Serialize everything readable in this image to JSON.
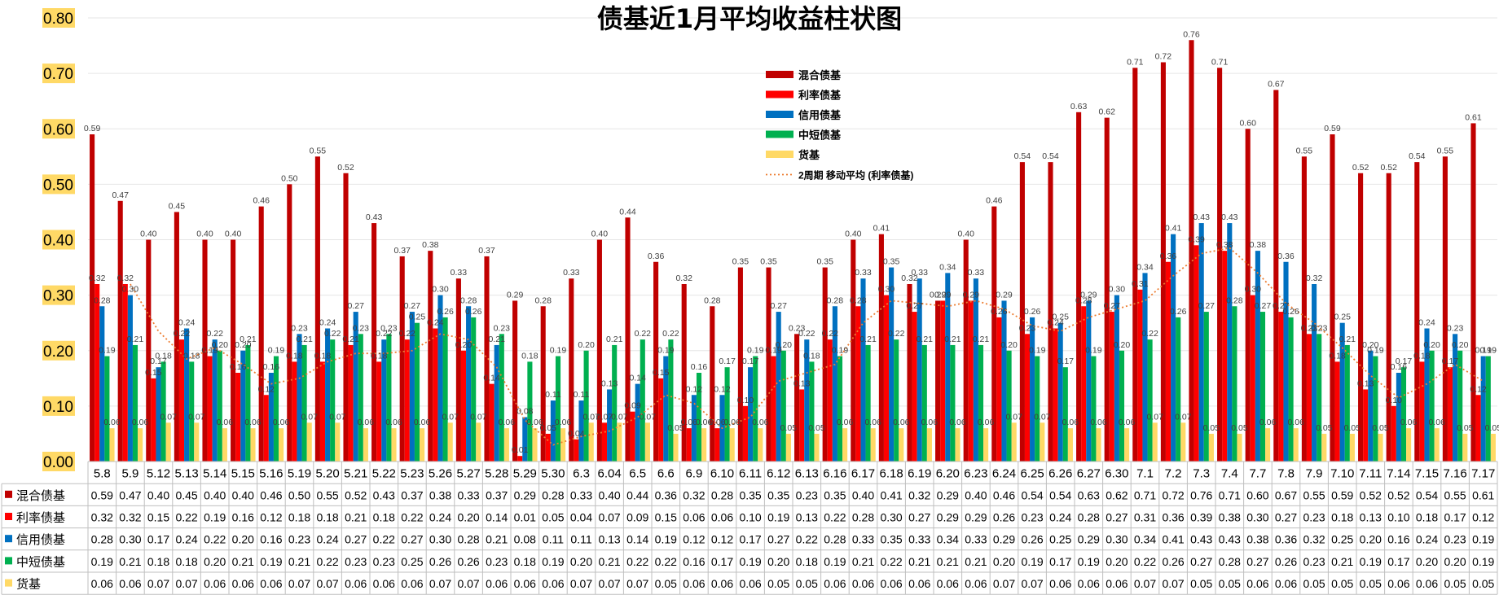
{
  "chart_data": {
    "type": "bar",
    "title": "债基近1月平均收益柱状图",
    "ylim": [
      0,
      0.8
    ],
    "yticks": [
      "0.00",
      "0.10",
      "0.20",
      "0.30",
      "0.40",
      "0.50",
      "0.60",
      "0.70",
      "0.80"
    ],
    "grid": true,
    "legend_position": "top-center",
    "categories": [
      "5.8",
      "5.9",
      "5.12",
      "5.13",
      "5.14",
      "5.15",
      "5.16",
      "5.19",
      "5.20",
      "5.21",
      "5.22",
      "5.23",
      "5.26",
      "5.27",
      "5.28",
      "5.29",
      "5.30",
      "6.3",
      "6.04",
      "6.5",
      "6.6",
      "6.9",
      "6.10",
      "6.11",
      "6.12",
      "6.13",
      "6.16",
      "6.17",
      "6.18",
      "6.19",
      "6.20",
      "6.23",
      "6.24",
      "6.25",
      "6.26",
      "6.27",
      "6.30",
      "7.1",
      "7.2",
      "7.3",
      "7.4",
      "7.7",
      "7.8",
      "7.9",
      "7.10",
      "7.11",
      "7.14",
      "7.15",
      "7.16",
      "7.17"
    ],
    "series": [
      {
        "name": "混合债基",
        "color": "#c00000",
        "values": [
          0.59,
          0.47,
          0.4,
          0.45,
          0.4,
          0.4,
          0.46,
          0.5,
          0.55,
          0.52,
          0.43,
          0.37,
          0.38,
          0.33,
          0.37,
          0.29,
          0.28,
          0.33,
          0.4,
          0.44,
          0.36,
          0.32,
          0.28,
          0.35,
          0.35,
          0.23,
          0.35,
          0.4,
          0.41,
          0.32,
          0.29,
          0.4,
          0.46,
          0.54,
          0.54,
          0.63,
          0.62,
          0.71,
          0.72,
          0.76,
          0.71,
          0.6,
          0.67,
          0.55,
          0.59,
          0.52,
          0.52,
          0.54,
          0.55,
          0.61
        ]
      },
      {
        "name": "利率债基",
        "color": "#ff0000",
        "values": [
          0.32,
          0.32,
          0.15,
          0.22,
          0.19,
          0.16,
          0.12,
          0.18,
          0.18,
          0.21,
          0.18,
          0.22,
          0.24,
          0.2,
          0.14,
          0.01,
          0.05,
          0.04,
          0.07,
          0.09,
          0.15,
          0.06,
          0.06,
          0.1,
          0.19,
          0.13,
          0.22,
          0.28,
          0.3,
          0.27,
          0.29,
          0.29,
          0.26,
          0.23,
          0.24,
          0.28,
          0.27,
          0.31,
          0.36,
          0.39,
          0.38,
          0.3,
          0.27,
          0.23,
          0.18,
          0.13,
          0.1,
          0.18,
          0.17,
          0.12
        ]
      },
      {
        "name": "信用债基",
        "color": "#0070c0",
        "values": [
          0.28,
          0.3,
          0.17,
          0.24,
          0.22,
          0.2,
          0.16,
          0.23,
          0.24,
          0.27,
          0.22,
          0.27,
          0.3,
          0.28,
          0.21,
          0.08,
          0.11,
          0.11,
          0.13,
          0.14,
          0.19,
          0.12,
          0.12,
          0.17,
          0.27,
          0.22,
          0.28,
          0.33,
          0.35,
          0.33,
          0.34,
          0.33,
          0.29,
          0.26,
          0.25,
          0.29,
          0.3,
          0.34,
          0.41,
          0.43,
          0.43,
          0.38,
          0.36,
          0.32,
          0.25,
          0.2,
          0.16,
          0.24,
          0.23,
          0.19
        ]
      },
      {
        "name": "中短债基",
        "color": "#00b050",
        "values": [
          0.19,
          0.21,
          0.18,
          0.18,
          0.2,
          0.21,
          0.19,
          0.21,
          0.22,
          0.23,
          0.23,
          0.25,
          0.26,
          0.26,
          0.23,
          0.18,
          0.19,
          0.2,
          0.21,
          0.22,
          0.22,
          0.16,
          0.17,
          0.19,
          0.2,
          0.18,
          0.19,
          0.21,
          0.22,
          0.21,
          0.21,
          0.21,
          0.2,
          0.19,
          0.17,
          0.19,
          0.2,
          0.22,
          0.26,
          0.27,
          0.28,
          0.27,
          0.26,
          0.23,
          0.21,
          0.19,
          0.17,
          0.2,
          0.2,
          0.19
        ]
      },
      {
        "name": "货基",
        "color": "#ffd966",
        "values": [
          0.06,
          0.06,
          0.07,
          0.07,
          0.06,
          0.06,
          0.06,
          0.07,
          0.07,
          0.06,
          0.06,
          0.06,
          0.07,
          0.07,
          0.06,
          0.06,
          0.06,
          0.07,
          0.07,
          0.07,
          0.05,
          0.06,
          0.06,
          0.06,
          0.05,
          0.05,
          0.06,
          0.06,
          0.06,
          0.06,
          0.06,
          0.06,
          0.07,
          0.07,
          0.06,
          0.06,
          0.06,
          0.07,
          0.07,
          0.05,
          0.05,
          0.06,
          0.06,
          0.05,
          0.05,
          0.05,
          0.06,
          0.06,
          0.05,
          0.05
        ]
      }
    ],
    "trendline": {
      "name": "2周期 移动平均 (利率债基)",
      "color": "#ed7d31",
      "period": 2,
      "base_series": 1
    }
  }
}
